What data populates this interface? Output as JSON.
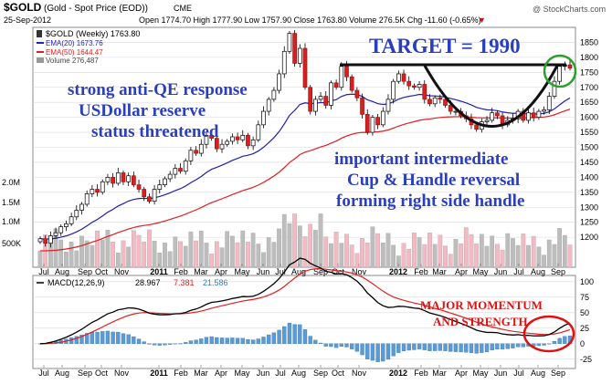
{
  "header": {
    "symbol": "$GOLD",
    "description": "(Gold - Spot Price (EOD))",
    "exchange": "CME",
    "date": "25-Sep-2012",
    "ohlc": "Open 1774.70  High 1777.90  Low 1757.90  Close 1763.80  Volume 276.5K  Chg -11.60 (-0.65%)",
    "chg_arrow": "▼",
    "watermark": "@ StockCharts.com"
  },
  "legend": {
    "main": "$GOLD (Weekly) 1763.80",
    "ema20": "EMA(20) 1673.76",
    "ema50": "EMA(50) 1644.47",
    "volume": "Volume 276,487"
  },
  "annotations": {
    "target": "TARGET = 1990",
    "left": [
      "strong anti-QE response",
      "USDollar reserve",
      "status threatened"
    ],
    "right": [
      "important intermediate",
      "Cup & Handle reversal",
      "forming right side handle"
    ],
    "macd": [
      "MAJOR MOMENTUM",
      "AND STRENGTH"
    ]
  },
  "colors": {
    "price_axis_text": "#000000",
    "ema20": "#1f1fb0",
    "ema50": "#e02020",
    "volume_up": "#bdbdbd",
    "volume_down": "#f4b9c2",
    "annotation_blue": "#2a3ec0",
    "annotation_red": "#e01010",
    "macd_hist": "#5b9bd5",
    "circle_green": "#2aa02a",
    "grid": "#d8d8d8"
  },
  "chart_data": [
    {
      "type": "candlestick",
      "title": "$GOLD (Gold - Spot Price (EOD)) CME",
      "period": "Weekly",
      "ylim": [
        1100,
        1900
      ],
      "y_ticks": [
        1200,
        1250,
        1300,
        1350,
        1400,
        1450,
        1500,
        1550,
        1600,
        1650,
        1700,
        1750,
        1800,
        1850
      ],
      "volume_ticks": [
        "500K",
        "1.0M",
        "1.5M",
        "2.0M"
      ],
      "x_labels": [
        "Jul",
        "Aug",
        "Sep",
        "Oct",
        "Nov",
        "2011",
        "Feb",
        "Mar",
        "Apr",
        "May",
        "Jun",
        "Jul",
        "Aug",
        "Sep",
        "Oct",
        "Nov",
        "2012",
        "Feb",
        "Mar",
        "Apr",
        "May",
        "Jun",
        "Jul",
        "Aug",
        "Sep"
      ],
      "series": [
        {
          "name": "$GOLD (Weekly)",
          "close": [
            1195,
            1180,
            1205,
            1215,
            1235,
            1245,
            1268,
            1290,
            1310,
            1345,
            1360,
            1350,
            1385,
            1400,
            1380,
            1415,
            1385,
            1405,
            1375,
            1360,
            1335,
            1320,
            1360,
            1375,
            1395,
            1410,
            1430,
            1420,
            1455,
            1490,
            1480,
            1510,
            1540,
            1530,
            1495,
            1510,
            1520,
            1535,
            1525,
            1540,
            1505,
            1525,
            1575,
            1620,
            1660,
            1690,
            1745,
            1820,
            1880,
            1780,
            1830,
            1700,
            1620,
            1660,
            1670,
            1640,
            1715,
            1700,
            1770,
            1735,
            1690,
            1665,
            1610,
            1550,
            1600,
            1575,
            1620,
            1660,
            1720,
            1745,
            1720,
            1705,
            1700,
            1710,
            1660,
            1645,
            1665,
            1660,
            1640,
            1620,
            1620,
            1605,
            1595,
            1575,
            1560,
            1585,
            1590,
            1615,
            1605,
            1575,
            1590,
            1595,
            1620,
            1590,
            1615,
            1600,
            1620,
            1625,
            1670,
            1720,
            1770,
            1775,
            1764
          ]
        },
        {
          "name": "EMA(20)",
          "value": 1673.76
        },
        {
          "name": "EMA(50)",
          "value": 1644.47
        },
        {
          "name": "Volume",
          "value": 276487
        }
      ],
      "target_level": 1790
    },
    {
      "type": "line",
      "title": "MACD(12,26,9)",
      "ylim": [
        -40,
        110
      ],
      "y_ticks": [
        -25,
        0,
        25,
        50,
        75,
        100
      ],
      "series": [
        {
          "name": "MACD(12,26,9)",
          "value": 28.967
        },
        {
          "name": "signal",
          "value": 7.381
        },
        {
          "name": "histogram",
          "value": 21.586
        }
      ]
    }
  ]
}
